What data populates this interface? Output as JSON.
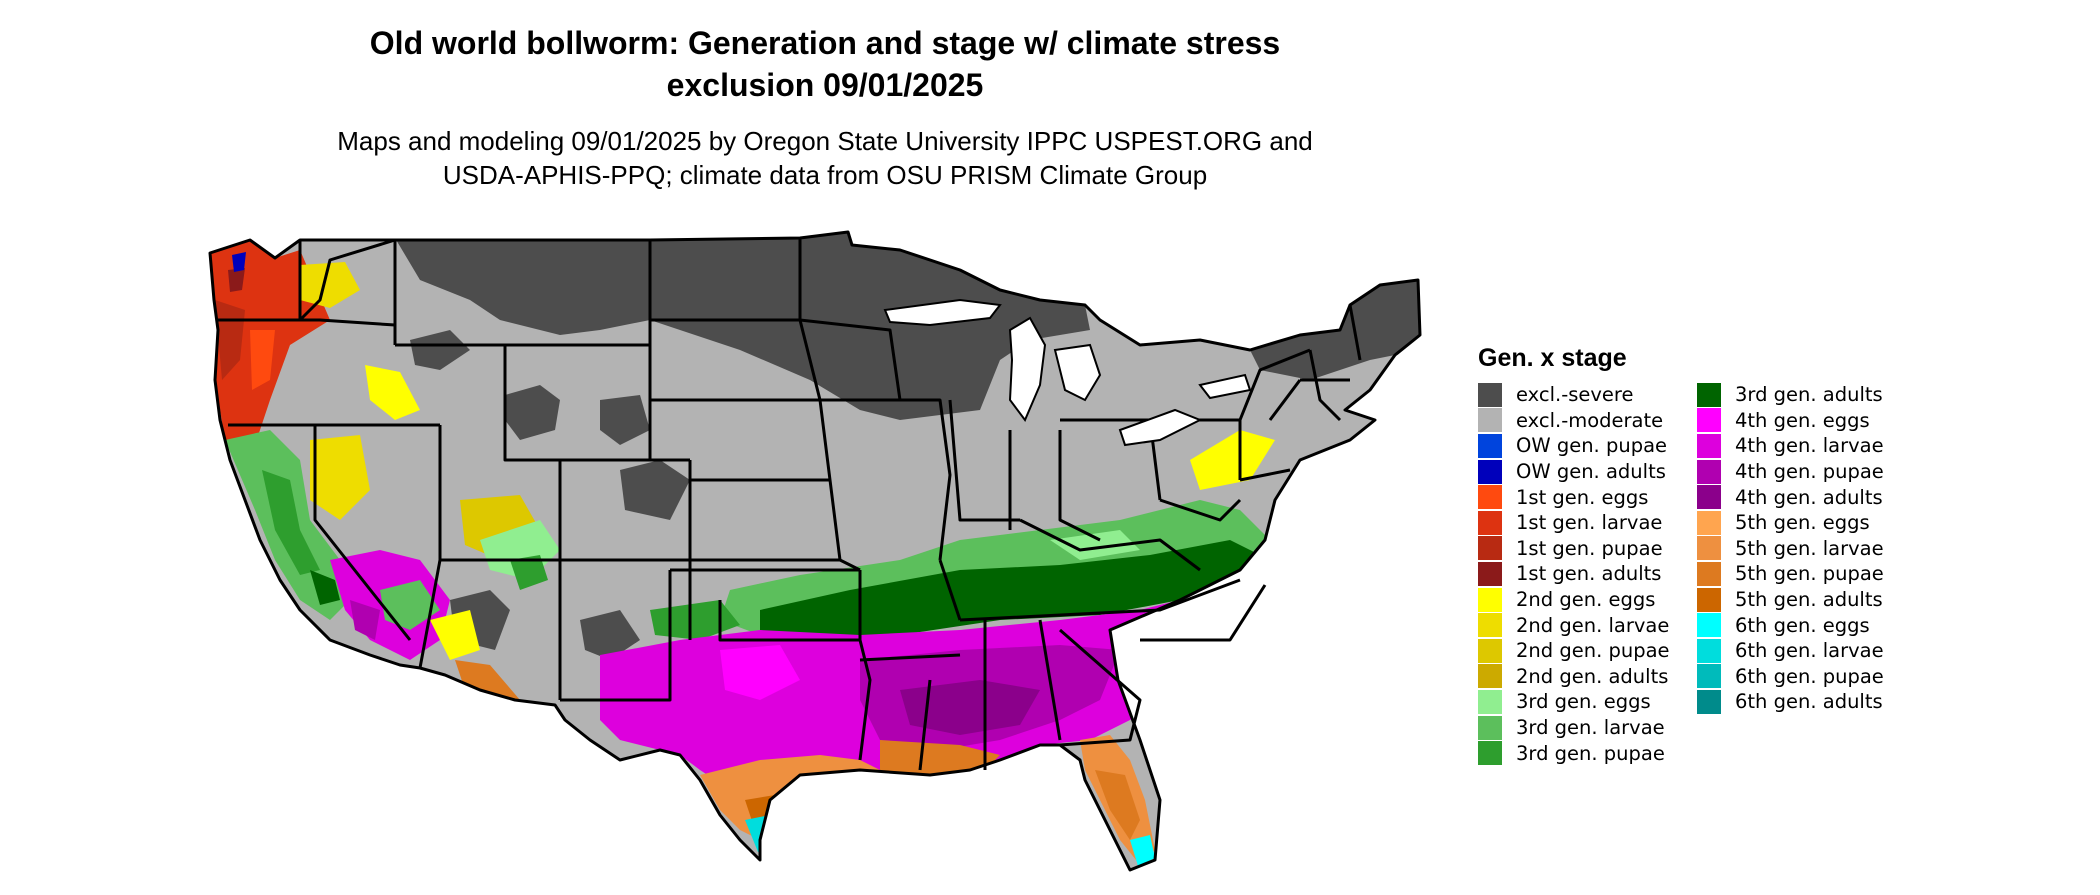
{
  "title_lines": [
    "Old world bollworm: Generation and stage w/ climate stress",
    "exclusion 09/01/2025"
  ],
  "subtitle_lines": [
    "Maps and modeling 09/01/2025 by Oregon State University IPPC USPEST.ORG and",
    "USDA-APHIS-PPQ; climate data from OSU PRISM Climate Group"
  ],
  "legend": {
    "title": "Gen. x stage",
    "items": [
      {
        "label": "excl.-severe",
        "color": "#4d4d4d"
      },
      {
        "label": "excl.-moderate",
        "color": "#b3b3b3"
      },
      {
        "label": "OW gen. pupae",
        "color": "#0044dd"
      },
      {
        "label": "OW gen. adults",
        "color": "#0000bb"
      },
      {
        "label": "1st gen. eggs",
        "color": "#ff4a0f"
      },
      {
        "label": "1st gen. larvae",
        "color": "#dd3311"
      },
      {
        "label": "1st gen. pupae",
        "color": "#b82a12"
      },
      {
        "label": "1st gen. adults",
        "color": "#8b1a1a"
      },
      {
        "label": "2nd gen. eggs",
        "color": "#ffff00"
      },
      {
        "label": "2nd gen. larvae",
        "color": "#eedd00"
      },
      {
        "label": "2nd gen. pupae",
        "color": "#ddc800"
      },
      {
        "label": "2nd gen. adults",
        "color": "#ccaa00"
      },
      {
        "label": "3rd gen. eggs",
        "color": "#90ee90"
      },
      {
        "label": "3rd gen. larvae",
        "color": "#5cbf5c"
      },
      {
        "label": "3rd gen. pupae",
        "color": "#2e9e2e"
      },
      {
        "label": "3rd gen. adults",
        "color": "#006400"
      },
      {
        "label": "4th gen. eggs",
        "color": "#ff00ff"
      },
      {
        "label": "4th gen. larvae",
        "color": "#dd00dd"
      },
      {
        "label": "4th gen. pupae",
        "color": "#b000b0"
      },
      {
        "label": "4th gen. adults",
        "color": "#8b008b"
      },
      {
        "label": "5th gen. eggs",
        "color": "#ffa54f"
      },
      {
        "label": "5th gen. larvae",
        "color": "#ee9040"
      },
      {
        "label": "5th gen. pupae",
        "color": "#dd7a20"
      },
      {
        "label": "5th gen. adults",
        "color": "#cc6600"
      },
      {
        "label": "6th gen. eggs",
        "color": "#00ffff"
      },
      {
        "label": "6th gen. larvae",
        "color": "#00dddd"
      },
      {
        "label": "6th gen. pupae",
        "color": "#00bbbb"
      },
      {
        "label": "6th gen. adults",
        "color": "#008b8b"
      }
    ]
  }
}
